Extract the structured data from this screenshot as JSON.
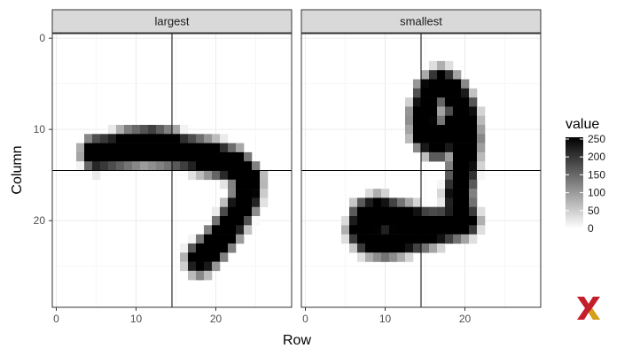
{
  "chart_data": {
    "type": "heatmap",
    "xlabel": "Row",
    "ylabel": "Column",
    "xlim": [
      -0.5,
      29.5
    ],
    "ylim": [
      29.5,
      -0.5
    ],
    "x_ticks": [
      0,
      10,
      20
    ],
    "y_ticks": [
      0,
      10,
      20
    ],
    "grid": true,
    "reference_lines": {
      "x": 14.5,
      "y": 14.5
    },
    "legend": {
      "title": "value",
      "placement": "right",
      "ticks": [
        0,
        50,
        100,
        150,
        200,
        250
      ],
      "range": [
        0,
        255
      ],
      "low_color": "#ffffff",
      "high_color": "#000000"
    },
    "panels": [
      {
        "label": "largest",
        "strokes": [
          {
            "points": [
              [
                5,
                12.6
              ],
              [
                8,
                12.3
              ],
              [
                11,
                12
              ],
              [
                14,
                12.2
              ],
              [
                17,
                12.6
              ],
              [
                20,
                13.2
              ],
              [
                22.5,
                14
              ]
            ],
            "width": 1.6
          },
          {
            "points": [
              [
                6,
                12.4
              ],
              [
                9,
                11.5
              ],
              [
                12,
                11.2
              ],
              [
                14.5,
                11.6
              ],
              [
                16,
                12.2
              ]
            ],
            "width": 1.2
          },
          {
            "points": [
              [
                22.5,
                14
              ],
              [
                24,
                15.5
              ],
              [
                23.8,
                17.5
              ],
              [
                22.5,
                19.5
              ],
              [
                21,
                21.5
              ],
              [
                19.5,
                23
              ],
              [
                18,
                24.2
              ]
            ],
            "width": 1.5
          }
        ]
      },
      {
        "label": "smallest",
        "strokes": [
          {
            "points": [
              [
                20,
                20
              ],
              [
                18,
                20.5
              ],
              [
                16,
                21
              ],
              [
                14,
                21.5
              ],
              [
                12,
                22
              ],
              [
                10,
                22.3
              ],
              [
                8,
                22
              ],
              [
                7,
                21
              ],
              [
                7.5,
                19.5
              ],
              [
                9,
                19
              ],
              [
                11,
                19.5
              ],
              [
                13,
                20
              ],
              [
                15,
                20.5
              ],
              [
                17,
                20.5
              ],
              [
                19.5,
                20
              ]
            ],
            "width": 1.5
          },
          {
            "points": [
              [
                19.5,
                20
              ],
              [
                19.2,
                17
              ],
              [
                19.8,
                14
              ],
              [
                20.2,
                11
              ],
              [
                19.8,
                8
              ],
              [
                18.5,
                6
              ],
              [
                17,
                5
              ],
              [
                15.6,
                6
              ],
              [
                14.8,
                8.5
              ],
              [
                15,
                10.5
              ],
              [
                16.5,
                11.5
              ],
              [
                18,
                10.5
              ],
              [
                19.2,
                9
              ]
            ],
            "width": 1.5
          }
        ]
      }
    ]
  }
}
